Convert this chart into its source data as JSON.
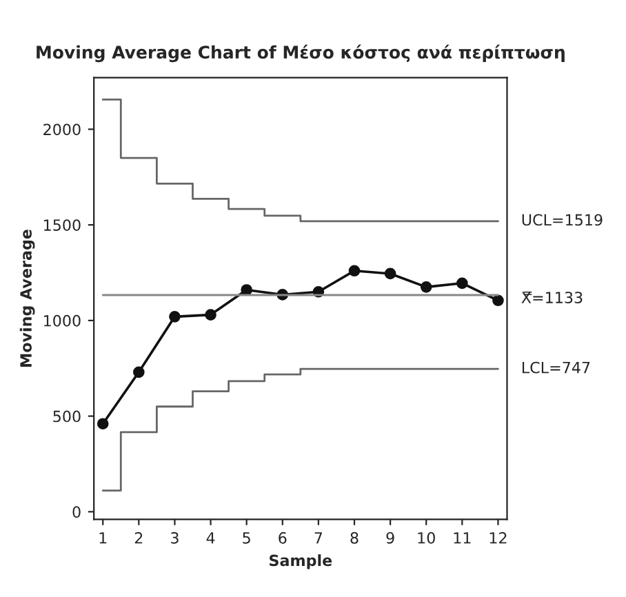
{
  "chart_data": {
    "type": "line",
    "title": "Moving Average Chart of Μέσο κόστος ανά περίπτωση",
    "xlabel": "Sample",
    "ylabel": "Moving Average",
    "x": [
      1,
      2,
      3,
      4,
      5,
      6,
      7,
      8,
      9,
      10,
      11,
      12
    ],
    "series": [
      {
        "type": "step",
        "name": "UCL=1519",
        "color": "#666666",
        "marker": "none",
        "values": [
          2155,
          1850,
          1716,
          1636,
          1583,
          1548,
          1519,
          1519,
          1519,
          1519,
          1519,
          1519
        ]
      },
      {
        "type": "step",
        "name": "LCL=747",
        "color": "#666666",
        "marker": "none",
        "values": [
          111,
          416,
          550,
          630,
          683,
          718,
          747,
          747,
          747,
          747,
          747,
          747
        ]
      },
      {
        "color": "#111111",
        "marker": "circle",
        "values": [
          460,
          730,
          1020,
          1030,
          1160,
          1135,
          1150,
          1260,
          1245,
          1175,
          1195,
          1105
        ]
      }
    ],
    "ref_lines": [
      {
        "axis": "y",
        "value": 1133,
        "label": "X̿=1133",
        "color": "#888888"
      }
    ],
    "xlim": [
      0.75,
      12.25
    ],
    "xticks": [
      1,
      2,
      3,
      4,
      5,
      6,
      7,
      8,
      9,
      10,
      11,
      12
    ],
    "ylim": [
      -40,
      2270
    ],
    "yticks": [
      0,
      500,
      1000,
      1500,
      2000
    ],
    "grid": false,
    "legend": false
  }
}
